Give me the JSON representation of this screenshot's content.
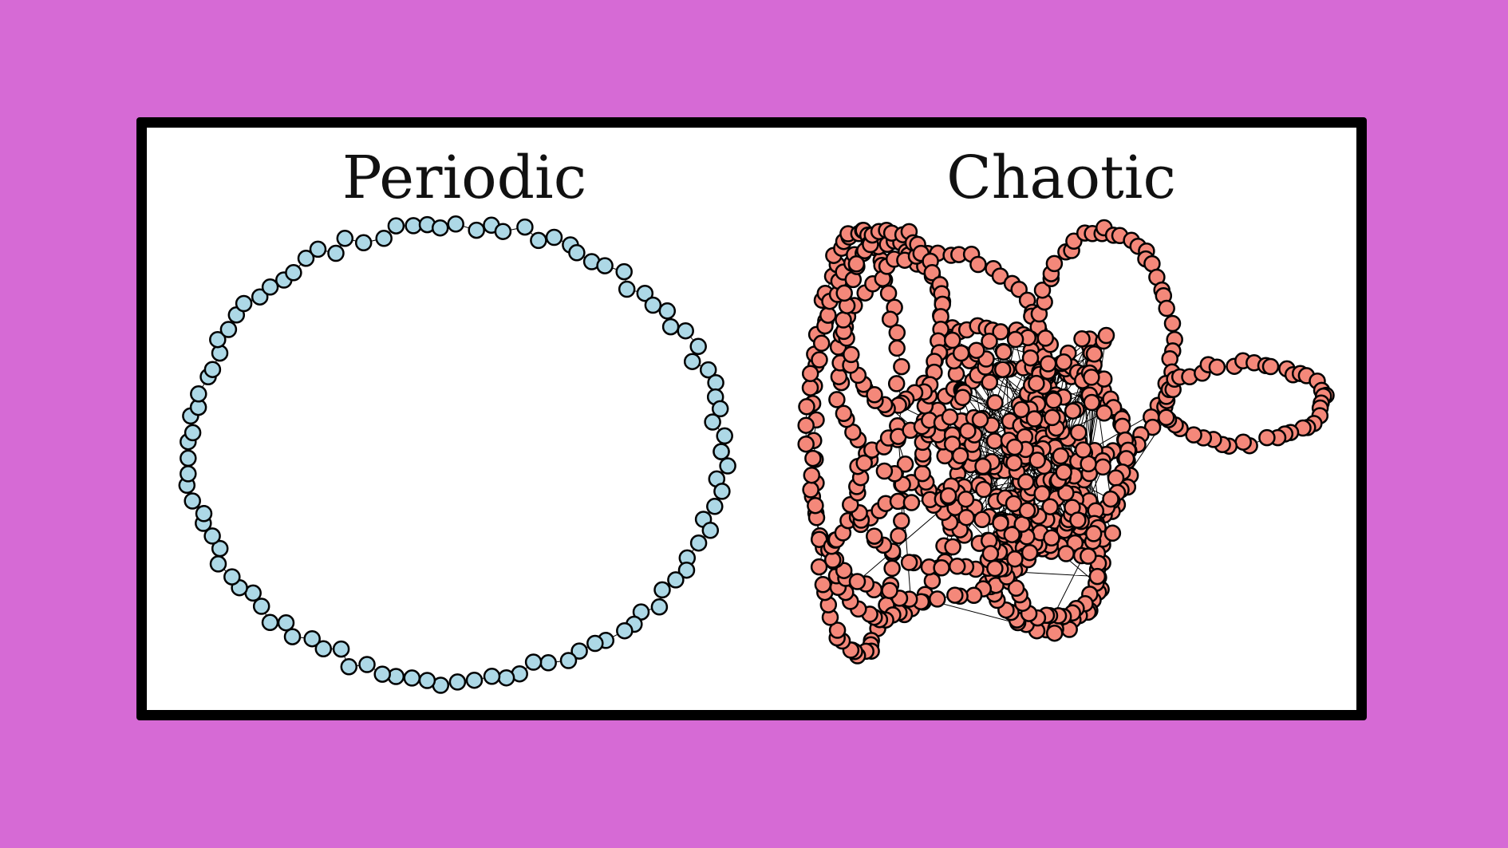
{
  "panels": [
    {
      "title": "Periodic",
      "node_fill": "#add8e6",
      "node_stroke": "#000000",
      "kind": "closed-loop"
    },
    {
      "title": "Chaotic",
      "node_fill": "#f4887a",
      "node_stroke": "#000000",
      "kind": "tangled-attractor"
    }
  ],
  "colors": {
    "background": "#d66ad5",
    "frame_border": "#000000",
    "frame_fill": "#ffffff",
    "edge": "#000000"
  }
}
